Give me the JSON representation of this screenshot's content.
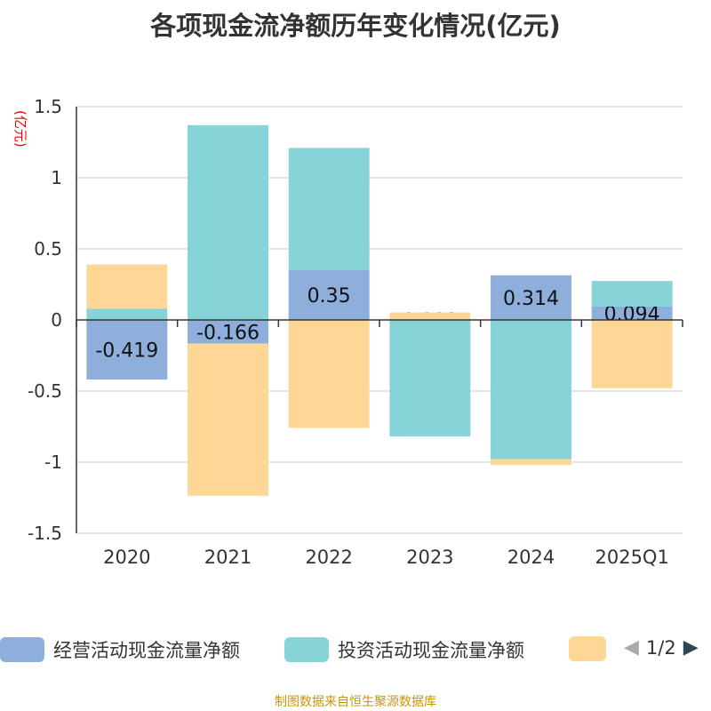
{
  "title": "各项现金流净额历年变化情况(亿元)",
  "chart_data": {
    "type": "bar",
    "stacked": true,
    "ylabel": "(亿元)",
    "ylim": [
      -1.5,
      1.5
    ],
    "yticks": [
      1.5,
      1,
      0.5,
      0,
      -0.5,
      -1,
      -1.5
    ],
    "ytick_labels": [
      "1.5",
      "1",
      "0.5",
      "0",
      "-0.5",
      "-1",
      "-1.5"
    ],
    "grid": true,
    "categories": [
      "2020",
      "2021",
      "2022",
      "2023",
      "2024",
      "2025Q1"
    ],
    "series": [
      {
        "name": "经营活动现金流量净额",
        "color": "#8eaedb",
        "values": [
          -0.419,
          -0.166,
          0.35,
          0.003,
          0.314,
          0.094
        ],
        "labels": [
          "-0.419",
          "-0.166",
          "0.35",
          "0.003",
          "0.314",
          "0.094"
        ]
      },
      {
        "name": "投资活动现金流量净额",
        "color": "#86d4d8",
        "values": [
          0.08,
          1.37,
          0.86,
          -0.82,
          -0.98,
          0.18
        ]
      },
      {
        "name": "",
        "color": "#fed797",
        "values": [
          0.31,
          -1.07,
          -0.76,
          0.05,
          -0.04,
          -0.48
        ]
      }
    ],
    "legend_position": "bottom"
  },
  "legend": {
    "page": "1/2"
  },
  "source": "制图数据来自恒生聚源数据库"
}
